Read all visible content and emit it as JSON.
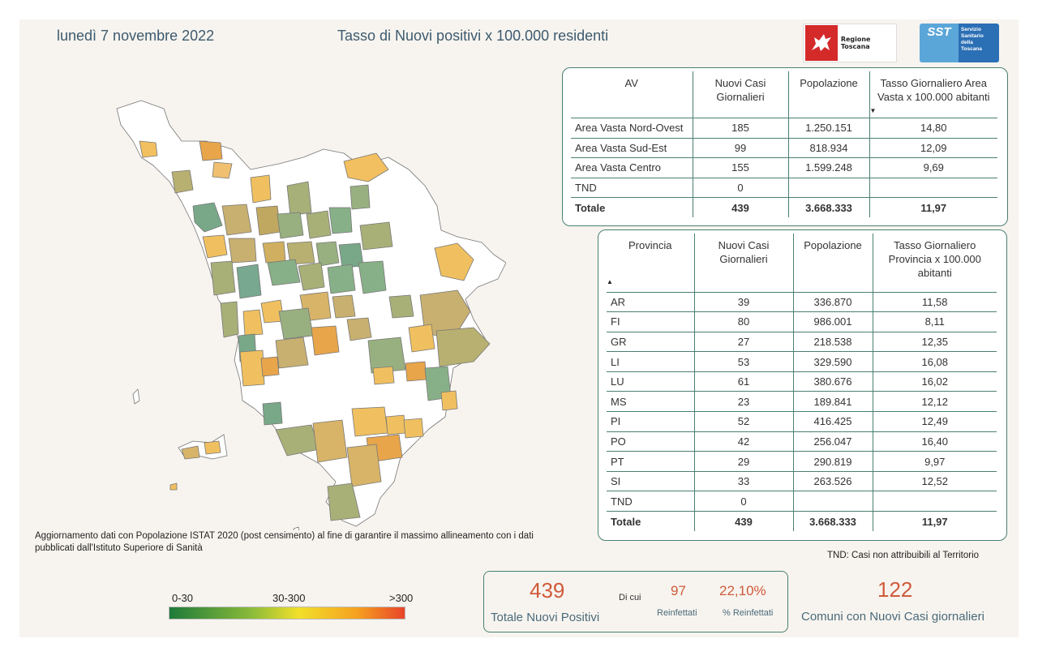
{
  "header": {
    "date": "lunedì 7 novembre 2022",
    "title": "Tasso di Nuovi positivi x 100.000 residenti"
  },
  "logos": {
    "regione": "Regione Toscana",
    "sst_short": "SST",
    "sst_full": [
      "Servizio",
      "Sanitario",
      "della",
      "Toscana"
    ]
  },
  "av_table": {
    "headers": [
      "AV",
      "Nuovi Casi Giornalieri",
      "Popolazione",
      "Tasso Giornaliero Area Vasta x 100.000 abitanti"
    ],
    "rows": [
      [
        "Area Vasta Nord-Ovest",
        "185",
        "1.250.151",
        "14,80"
      ],
      [
        "Area Vasta Sud-Est",
        "99",
        "818.934",
        "12,09"
      ],
      [
        "Area Vasta Centro",
        "155",
        "1.599.248",
        "9,69"
      ],
      [
        "TND",
        "0",
        "",
        ""
      ]
    ],
    "total": [
      "Totale",
      "439",
      "3.668.333",
      "11,97"
    ]
  },
  "prov_table": {
    "headers": [
      "Provincia",
      "Nuovi Casi Giornalieri",
      "Popolazione",
      "Tasso Giornaliero Provincia x 100.000 abitanti"
    ],
    "rows": [
      [
        "AR",
        "39",
        "336.870",
        "11,58"
      ],
      [
        "FI",
        "80",
        "986.001",
        "8,11"
      ],
      [
        "GR",
        "27",
        "218.538",
        "12,35"
      ],
      [
        "LI",
        "53",
        "329.590",
        "16,08"
      ],
      [
        "LU",
        "61",
        "380.676",
        "16,02"
      ],
      [
        "MS",
        "23",
        "189.841",
        "12,12"
      ],
      [
        "PI",
        "52",
        "416.425",
        "12,49"
      ],
      [
        "PO",
        "42",
        "256.047",
        "16,40"
      ],
      [
        "PT",
        "29",
        "290.819",
        "9,97"
      ],
      [
        "SI",
        "33",
        "263.526",
        "12,52"
      ],
      [
        "TND",
        "0",
        "",
        ""
      ]
    ],
    "total": [
      "Totale",
      "439",
      "3.668.333",
      "11,97"
    ]
  },
  "note": "Aggiornamento dati con Popolazione ISTAT 2020 (post censimento) al fine di garantire il massimo allineamento con i dati pubblicati dall'Istituto Superiore di Sanità",
  "tnd_note": "TND:  Casi non attribuibili al Territorio",
  "legend": {
    "labels": [
      "0-30",
      "30-300",
      ">300"
    ],
    "colors": [
      "#1e7a3a",
      "#f2e02a",
      "#e8452a"
    ]
  },
  "kpi": {
    "total_value": "439",
    "total_label": "Totale Nuovi Positivi",
    "di_cui": "Di cui",
    "reinf_value": "97",
    "reinf_label": "Reinfettati",
    "pct_value": "22,10%",
    "pct_label": "% Reinfettati",
    "comuni_value": "122",
    "comuni_label": "Comuni con Nuovi Casi giornalieri"
  },
  "colors": {
    "accent": "#4a7f73",
    "kpi_number": "#d05a3a",
    "title_text": "#3d5a6e"
  }
}
